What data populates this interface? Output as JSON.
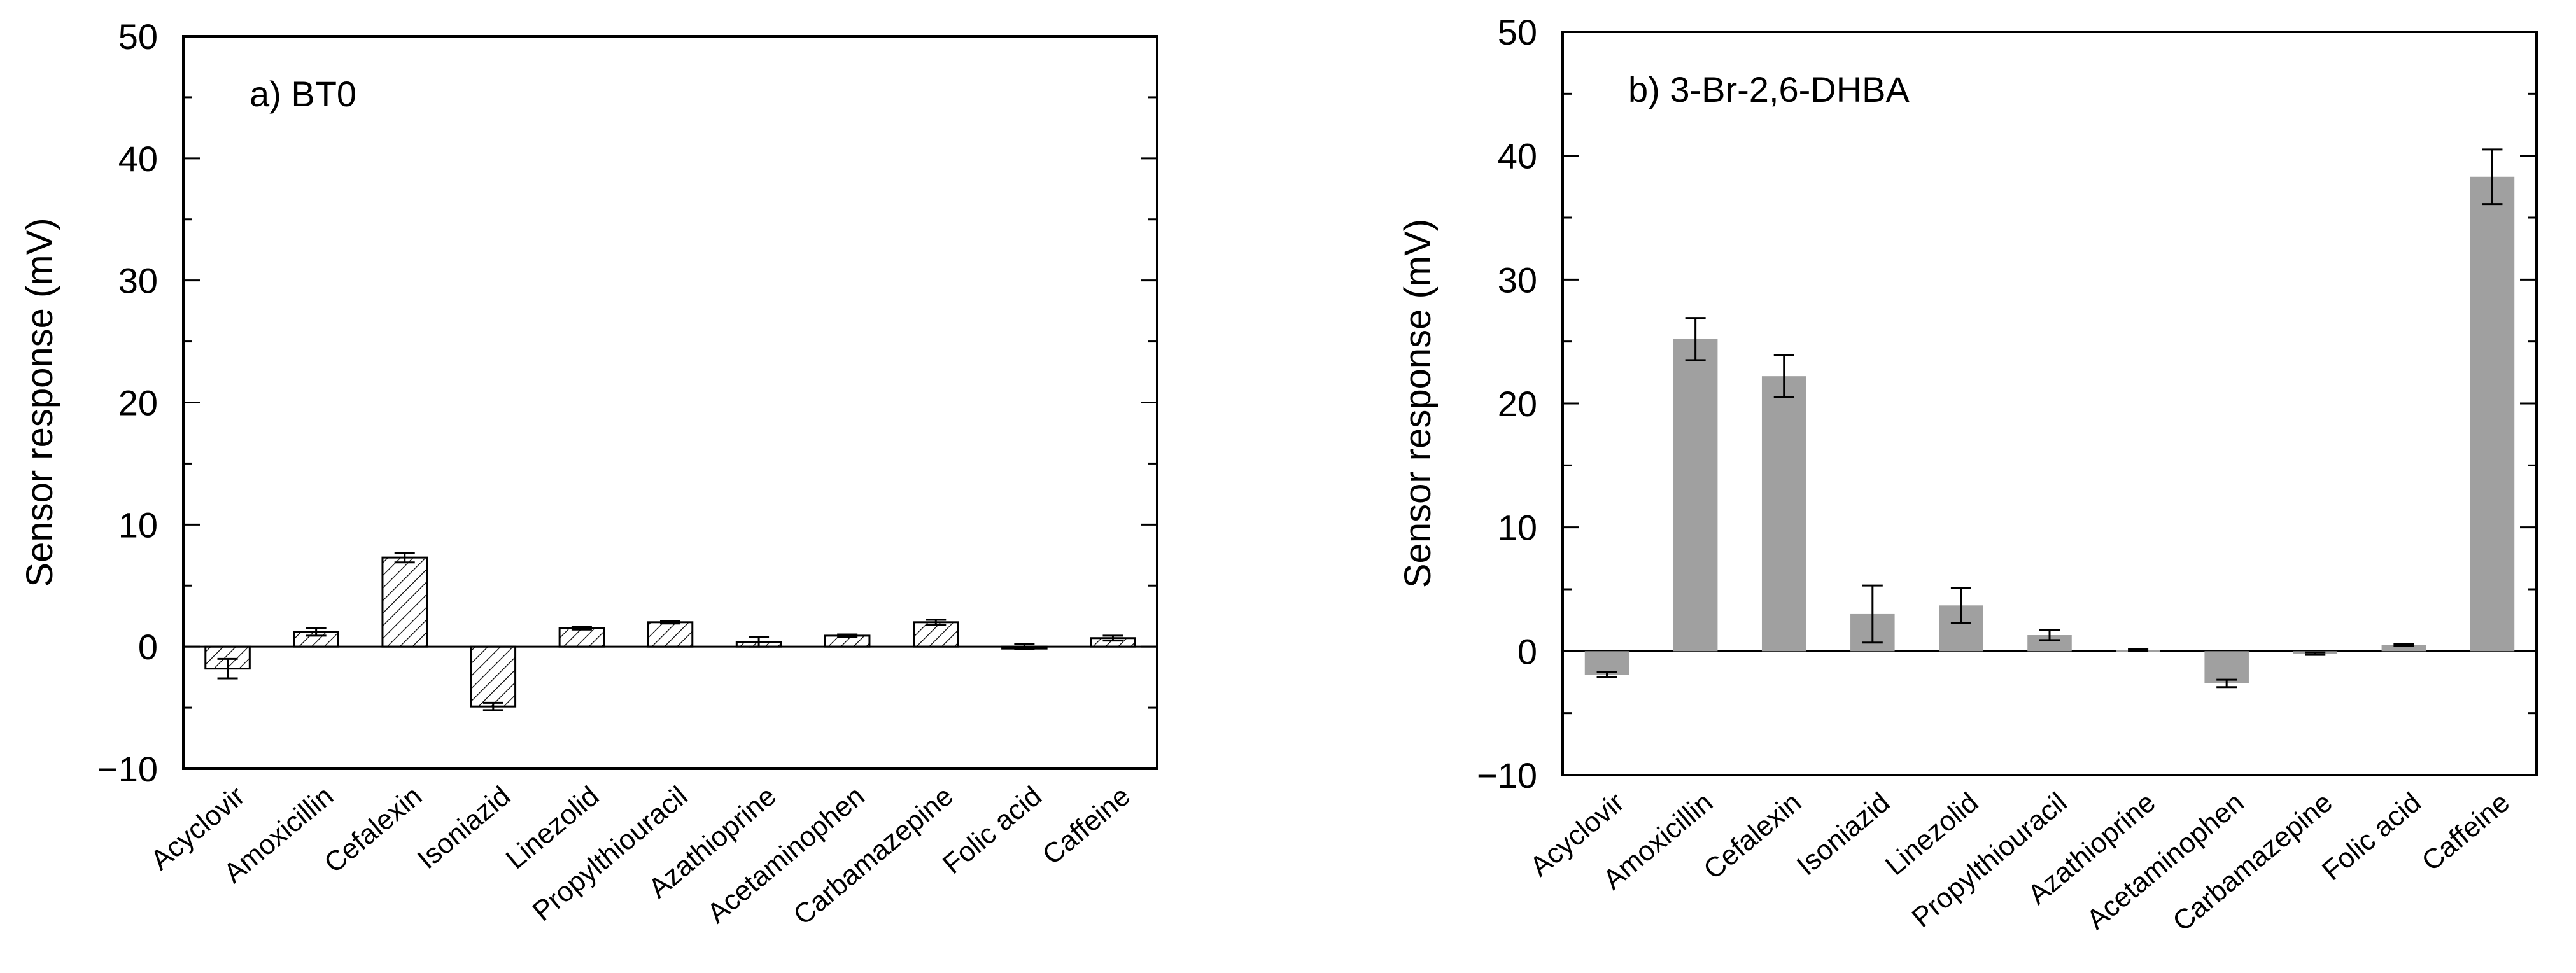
{
  "chart_data": [
    {
      "type": "bar",
      "panel_label": "a) BT0",
      "ylabel": "Sensor response (mV)",
      "xlabel": "",
      "ylim": [
        -10,
        50
      ],
      "yticks": [
        -10,
        0,
        10,
        20,
        30,
        40,
        50
      ],
      "ytick_labels": [
        "−10",
        "0",
        "10",
        "20",
        "30",
        "40",
        "50"
      ],
      "bar_style": "hatched",
      "categories": [
        "Acyclovir",
        "Amoxicillin",
        "Cefalexin",
        "Isoniazid",
        "Linezolid",
        "Propylthiouracil",
        "Azathioprine",
        "Acetaminophen",
        "Carbamazepine",
        "Folic acid",
        "Caffeine"
      ],
      "values": [
        -1.8,
        1.2,
        7.3,
        -4.9,
        1.5,
        2.0,
        0.4,
        0.9,
        2.0,
        0.0,
        0.7
      ],
      "errors": [
        0.8,
        0.3,
        0.4,
        0.3,
        0.1,
        0.1,
        0.4,
        0.1,
        0.2,
        0.2,
        0.2
      ]
    },
    {
      "type": "bar",
      "panel_label": "b) 3-Br-2,6-DHBA",
      "ylabel": "Sensor response (mV)",
      "xlabel": "",
      "ylim": [
        -10,
        50
      ],
      "yticks": [
        -10,
        0,
        10,
        20,
        30,
        40,
        50
      ],
      "ytick_labels": [
        "−10",
        "0",
        "10",
        "20",
        "30",
        "40",
        "50"
      ],
      "bar_style": "gray",
      "categories": [
        "Acyclovir",
        "Amoxicillin",
        "Cefalexin",
        "Isoniazid",
        "Linezolid",
        "Propylthiouracil",
        "Azathioprine",
        "Acetaminophen",
        "Carbamazepine",
        "Folic acid",
        "Caffeine"
      ],
      "values": [
        -1.9,
        25.2,
        22.2,
        3.0,
        3.7,
        1.3,
        0.1,
        -2.6,
        -0.2,
        0.5,
        38.3
      ],
      "errors": [
        0.2,
        1.7,
        1.7,
        2.3,
        1.4,
        0.4,
        0.1,
        0.3,
        0.1,
        0.1,
        2.2
      ]
    }
  ],
  "colors": {
    "gray_bar": "#a0a0a0",
    "axis": "#000000",
    "hatch": "#000000"
  }
}
